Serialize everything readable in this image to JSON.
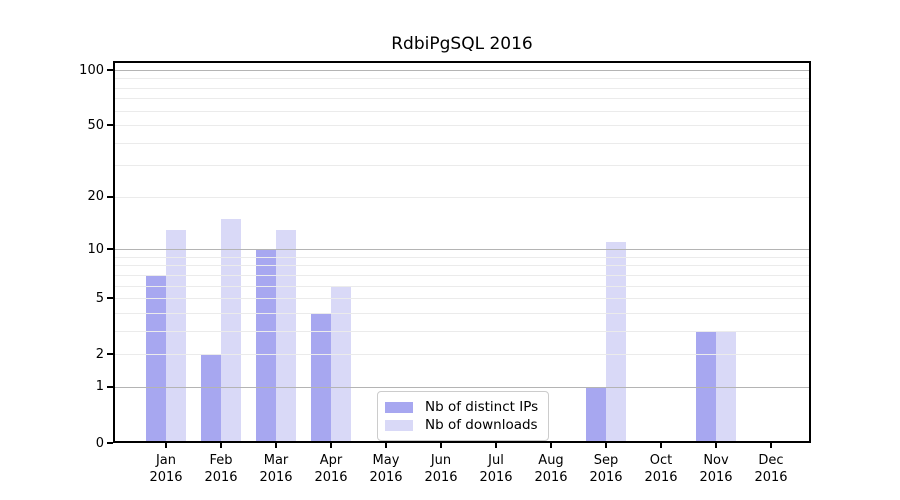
{
  "chart_data": {
    "type": "bar",
    "title": "RdbiPgSQL 2016",
    "year": "2016",
    "categories": [
      "Jan 2016",
      "Feb 2016",
      "Mar 2016",
      "Apr 2016",
      "May 2016",
      "Jun 2016",
      "Jul 2016",
      "Aug 2016",
      "Sep 2016",
      "Oct 2016",
      "Nov 2016",
      "Dec 2016"
    ],
    "series": [
      {
        "name": "Nb of distinct IPs",
        "color": "#a7a7f0",
        "values": [
          7,
          2,
          10,
          4,
          0,
          0,
          0,
          0,
          1,
          0,
          3,
          0
        ]
      },
      {
        "name": "Nb of downloads",
        "color": "#d9d9f7",
        "values": [
          13,
          15,
          13,
          6,
          0,
          0,
          0,
          0,
          11,
          0,
          3,
          0
        ]
      }
    ],
    "yscale": "log1p",
    "ylim": [
      0,
      130
    ],
    "ytick_values": [
      100,
      50,
      20,
      10,
      5,
      2,
      1,
      0
    ],
    "ytick_labels": [
      "100",
      "50",
      "20",
      "10",
      "5",
      "2",
      "1",
      "0"
    ],
    "major_grid_values": [
      1,
      10,
      100
    ],
    "minor_grid_values": [
      2,
      3,
      4,
      5,
      6,
      7,
      8,
      9,
      20,
      30,
      40,
      50,
      60,
      70,
      80,
      90
    ],
    "grid": "on",
    "legend_position": "bottom-center",
    "colors": {
      "major_grid": "#b4b4b4",
      "minor_grid": "#ebebeb",
      "axis": "#000000",
      "background": "#ffffff"
    }
  }
}
